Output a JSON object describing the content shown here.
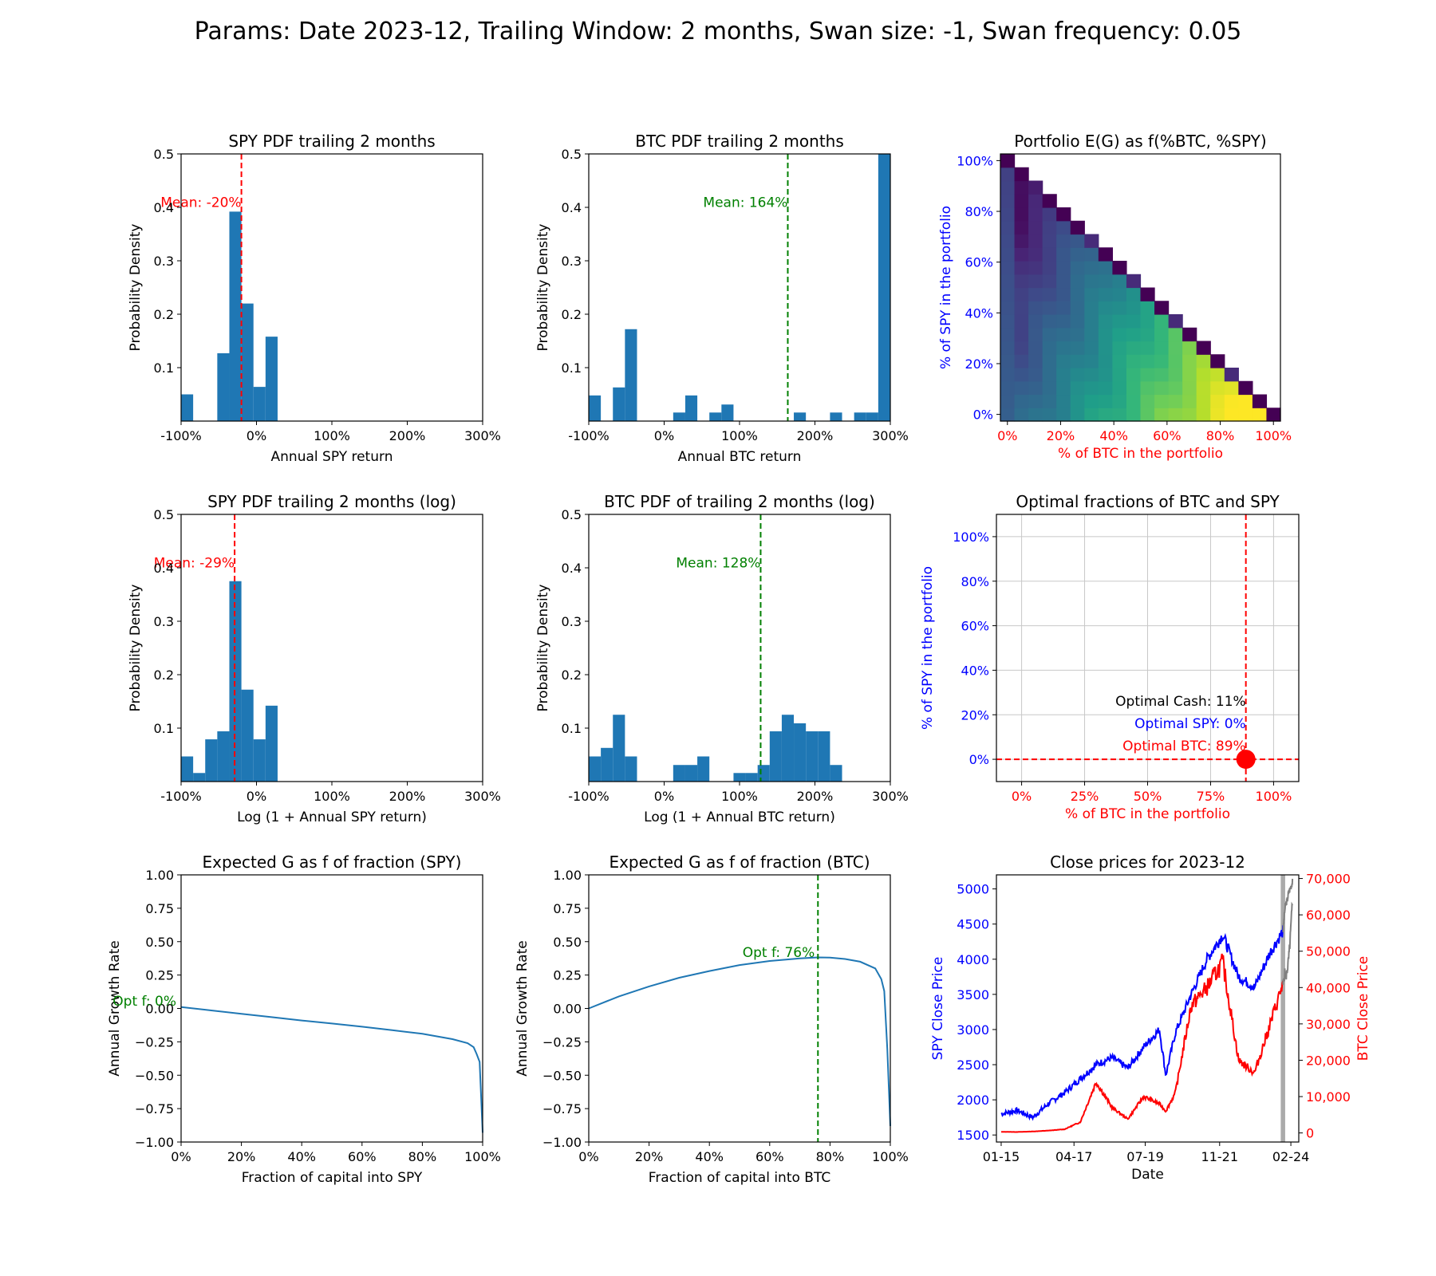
{
  "suptitle": "Params: Date 2023-12, Trailing Window:  2 months,  Swan size: -1, Swan frequency: 0.05",
  "colors": {
    "bar": "#1f77b4",
    "red": "#ff0000",
    "green": "#008000",
    "blue": "#0000ff",
    "gray": "#808080"
  },
  "chart_data": [
    {
      "id": "spy_pdf",
      "type": "bar",
      "title": "SPY PDF trailing 2 months",
      "xlabel": "Annual SPY return",
      "ylabel": "Probability Density",
      "xlim": [
        -1.0,
        3.0
      ],
      "ylim": [
        0,
        0.5
      ],
      "xticks": [
        -1,
        0,
        1,
        2,
        3
      ],
      "xtick_labels": [
        "-100%",
        "0%",
        "100%",
        "200%",
        "300%"
      ],
      "yticks": [
        0.1,
        0.2,
        0.3,
        0.4,
        0.5
      ],
      "ytick_labels": [
        "0.1",
        "0.2",
        "0.3",
        "0.4",
        "0.5"
      ],
      "bar_width": 0.16,
      "bars": [
        {
          "x0": -1.0,
          "v": 0.05
        },
        {
          "x0": -0.52,
          "v": 0.127
        },
        {
          "x0": -0.36,
          "v": 0.392
        },
        {
          "x0": -0.2,
          "v": 0.22
        },
        {
          "x0": -0.04,
          "v": 0.064
        },
        {
          "x0": 0.12,
          "v": 0.158
        }
      ],
      "mean_line": {
        "x": -0.2,
        "label": "Mean: -20%",
        "color": "red"
      }
    },
    {
      "id": "btc_pdf",
      "type": "bar",
      "title": "BTC PDF trailing 2 months",
      "xlabel": "Annual BTC return",
      "ylabel": "Probability Density",
      "xlim": [
        -1.0,
        3.0
      ],
      "ylim": [
        0,
        0.5
      ],
      "xticks": [
        -1,
        0,
        1,
        2,
        3
      ],
      "xtick_labels": [
        "-100%",
        "0%",
        "100%",
        "200%",
        "300%"
      ],
      "yticks": [
        0.1,
        0.2,
        0.3,
        0.4,
        0.5
      ],
      "ytick_labels": [
        "0.1",
        "0.2",
        "0.3",
        "0.4",
        "0.5"
      ],
      "bar_width": 0.16,
      "bars": [
        {
          "x0": -1.0,
          "v": 0.048
        },
        {
          "x0": -0.68,
          "v": 0.063
        },
        {
          "x0": -0.52,
          "v": 0.172
        },
        {
          "x0": 0.12,
          "v": 0.016
        },
        {
          "x0": 0.28,
          "v": 0.048
        },
        {
          "x0": 0.6,
          "v": 0.016
        },
        {
          "x0": 0.76,
          "v": 0.031
        },
        {
          "x0": 1.72,
          "v": 0.016
        },
        {
          "x0": 2.2,
          "v": 0.016
        },
        {
          "x0": 2.52,
          "v": 0.016
        },
        {
          "x0": 2.68,
          "v": 0.016
        },
        {
          "x0": 2.84,
          "v": 0.5
        }
      ],
      "mean_line": {
        "x": 1.64,
        "label": "Mean: 164%",
        "color": "green"
      }
    },
    {
      "id": "portfolio_eg",
      "type": "heatmap",
      "title": "Portfolio E(G) as f(%BTC, %SPY)",
      "xlabel": "% of BTC in the portfolio",
      "ylabel": "% of SPY in the portfolio",
      "ticks": [
        0,
        20,
        40,
        60,
        80,
        100
      ],
      "tick_labels": [
        "0%",
        "20%",
        "40%",
        "60%",
        "80%",
        "100%"
      ],
      "n": 20,
      "colormap": "viridis",
      "cell_value_rule": "relative E(G) per cell, 0 = darkest, 1 = brightest; diagonal (BTC+SPY = 100%) is darkest"
    },
    {
      "id": "spy_log_pdf",
      "type": "bar",
      "title": "SPY PDF trailing 2 months (log)",
      "xlabel": "Log (1 + Annual SPY return)",
      "ylabel": "Probability Density",
      "xlim": [
        -1.0,
        3.0
      ],
      "ylim": [
        0,
        0.5
      ],
      "xticks": [
        -1,
        0,
        1,
        2,
        3
      ],
      "xtick_labels": [
        "-100%",
        "0%",
        "100%",
        "200%",
        "300%"
      ],
      "yticks": [
        0.1,
        0.2,
        0.3,
        0.4,
        0.5
      ],
      "ytick_labels": [
        "0.1",
        "0.2",
        "0.3",
        "0.4",
        "0.5"
      ],
      "bar_width": 0.16,
      "bars": [
        {
          "x0": -1.0,
          "v": 0.047
        },
        {
          "x0": -0.84,
          "v": 0.016
        },
        {
          "x0": -0.68,
          "v": 0.079
        },
        {
          "x0": -0.52,
          "v": 0.094
        },
        {
          "x0": -0.36,
          "v": 0.375
        },
        {
          "x0": -0.2,
          "v": 0.172
        },
        {
          "x0": -0.04,
          "v": 0.079
        },
        {
          "x0": 0.12,
          "v": 0.142
        }
      ],
      "mean_line": {
        "x": -0.29,
        "label": "Mean: -29%",
        "color": "red"
      }
    },
    {
      "id": "btc_log_pdf",
      "type": "bar",
      "title": "BTC PDF of trailing 2 months (log)",
      "xlabel": "Log (1 + Annual BTC return)",
      "ylabel": "Probability Density",
      "xlim": [
        -1.0,
        3.0
      ],
      "ylim": [
        0,
        0.5
      ],
      "xticks": [
        -1,
        0,
        1,
        2,
        3
      ],
      "xtick_labels": [
        "-100%",
        "0%",
        "100%",
        "200%",
        "300%"
      ],
      "yticks": [
        0.1,
        0.2,
        0.3,
        0.4,
        0.5
      ],
      "ytick_labels": [
        "0.1",
        "0.2",
        "0.3",
        "0.4",
        "0.5"
      ],
      "bar_width": 0.16,
      "bars": [
        {
          "x0": -1.0,
          "v": 0.047
        },
        {
          "x0": -0.84,
          "v": 0.063
        },
        {
          "x0": -0.68,
          "v": 0.125
        },
        {
          "x0": -0.52,
          "v": 0.047
        },
        {
          "x0": 0.12,
          "v": 0.031
        },
        {
          "x0": 0.28,
          "v": 0.031
        },
        {
          "x0": 0.44,
          "v": 0.047
        },
        {
          "x0": 0.92,
          "v": 0.016
        },
        {
          "x0": 1.08,
          "v": 0.016
        },
        {
          "x0": 1.24,
          "v": 0.031
        },
        {
          "x0": 1.4,
          "v": 0.094
        },
        {
          "x0": 1.56,
          "v": 0.125
        },
        {
          "x0": 1.72,
          "v": 0.109
        },
        {
          "x0": 1.88,
          "v": 0.094
        },
        {
          "x0": 2.04,
          "v": 0.094
        },
        {
          "x0": 2.2,
          "v": 0.031
        }
      ],
      "mean_line": {
        "x": 1.28,
        "label": "Mean: 128%",
        "color": "green"
      }
    },
    {
      "id": "optimal_fractions",
      "type": "scatter",
      "title": "Optimal fractions of BTC and SPY",
      "xlabel": "% of BTC in the portfolio",
      "ylabel": "% of SPY in the portfolio",
      "xlim": [
        -10,
        110
      ],
      "ylim": [
        -10,
        110
      ],
      "xticks": [
        0,
        25,
        50,
        75,
        100
      ],
      "xtick_labels": [
        "0%",
        "25%",
        "50%",
        "75%",
        "100%"
      ],
      "yticks": [
        0,
        20,
        40,
        60,
        80,
        100
      ],
      "ytick_labels": [
        "0%",
        "20%",
        "40%",
        "60%",
        "80%",
        "100%"
      ],
      "grid": true,
      "point": {
        "x": 89,
        "y": 0
      },
      "annotations": [
        {
          "text": "Optimal Cash: 11%",
          "color": "black"
        },
        {
          "text": "Optimal SPY: 0%",
          "color": "blue"
        },
        {
          "text": "Optimal BTC: 89%",
          "color": "red"
        }
      ]
    },
    {
      "id": "eg_spy",
      "type": "line",
      "title": "Expected G as f of fraction (SPY)",
      "xlabel": "Fraction of capital into SPY",
      "ylabel": "Annual Growth Rate",
      "xlim": [
        0,
        1
      ],
      "ylim": [
        -1,
        1
      ],
      "xticks": [
        0,
        0.2,
        0.4,
        0.6,
        0.8,
        1.0
      ],
      "xtick_labels": [
        "0%",
        "20%",
        "40%",
        "60%",
        "80%",
        "100%"
      ],
      "yticks": [
        -1,
        -0.75,
        -0.5,
        -0.25,
        0,
        0.25,
        0.5,
        0.75,
        1
      ],
      "ytick_labels": [
        "−1.00",
        "−0.75",
        "−0.50",
        "−0.25",
        "0.00",
        "0.25",
        "0.50",
        "0.75",
        "1.00"
      ],
      "x": [
        0,
        0.1,
        0.2,
        0.3,
        0.4,
        0.5,
        0.6,
        0.7,
        0.8,
        0.9,
        0.95,
        0.97,
        0.98,
        0.99,
        1.0
      ],
      "y": [
        0.01,
        -0.015,
        -0.04,
        -0.065,
        -0.09,
        -0.113,
        -0.137,
        -0.163,
        -0.19,
        -0.23,
        -0.26,
        -0.29,
        -0.34,
        -0.4,
        -0.93
      ],
      "opt": {
        "label": "Opt f: 0%",
        "x": 0,
        "y": 0.01
      }
    },
    {
      "id": "eg_btc",
      "type": "line",
      "title": "Expected G as f of fraction (BTC)",
      "xlabel": "Fraction of capital into BTC",
      "ylabel": "Annual Growth Rate",
      "xlim": [
        0,
        1
      ],
      "ylim": [
        -1,
        1
      ],
      "xticks": [
        0,
        0.2,
        0.4,
        0.6,
        0.8,
        1.0
      ],
      "xtick_labels": [
        "0%",
        "20%",
        "40%",
        "60%",
        "80%",
        "100%"
      ],
      "yticks": [
        -1,
        -0.75,
        -0.5,
        -0.25,
        0,
        0.25,
        0.5,
        0.75,
        1
      ],
      "ytick_labels": [
        "−1.00",
        "−0.75",
        "−0.50",
        "−0.25",
        "0.00",
        "0.25",
        "0.50",
        "0.75",
        "1.00"
      ],
      "x": [
        0,
        0.1,
        0.2,
        0.3,
        0.4,
        0.5,
        0.6,
        0.7,
        0.76,
        0.8,
        0.85,
        0.9,
        0.95,
        0.97,
        0.98,
        0.99,
        1.0
      ],
      "y": [
        0.0,
        0.09,
        0.165,
        0.23,
        0.28,
        0.325,
        0.355,
        0.375,
        0.382,
        0.38,
        0.37,
        0.35,
        0.3,
        0.22,
        0.13,
        -0.3,
        -0.88
      ],
      "opt_line": {
        "x": 0.76,
        "label": "Opt f: 76%",
        "color": "green"
      }
    },
    {
      "id": "close_prices",
      "type": "line",
      "title": "Close prices for 2023-12",
      "xlabel": "Date",
      "ylabel_left": "SPY Close Price",
      "ylabel_right": "BTC Close Price",
      "xtick_labels": [
        "01-15",
        "04-17",
        "07-19",
        "11-21",
        "02-24"
      ],
      "yticks_left": [
        1500,
        2000,
        2500,
        3000,
        3500,
        4000,
        4500,
        5000
      ],
      "ytick_labels_left": [
        "1500",
        "2000",
        "2500",
        "3000",
        "3500",
        "4000",
        "4500",
        "5000"
      ],
      "ylim_left": [
        1400,
        5200
      ],
      "yticks_right": [
        0,
        10000,
        20000,
        30000,
        40000,
        50000,
        60000,
        70000
      ],
      "ytick_labels_right": [
        "0",
        "10,000",
        "20,000",
        "30,000",
        "40,000",
        "50,000",
        "60,000",
        "70,000"
      ],
      "ylim_right": [
        -2500,
        71000
      ],
      "xlim": [
        2014.85,
        2024.4
      ],
      "x_years": [
        2015.0,
        2015.5,
        2016.0,
        2016.5,
        2017.0,
        2017.5,
        2018.0,
        2018.5,
        2019.0,
        2019.5,
        2020.0,
        2020.2,
        2020.5,
        2021.0,
        2021.5,
        2022.0,
        2022.5,
        2023.0,
        2023.5,
        2023.9
      ],
      "spy": [
        1800,
        1850,
        1750,
        1950,
        2100,
        2300,
        2500,
        2600,
        2450,
        2750,
        3000,
        2350,
        2950,
        3500,
        4000,
        4350,
        3750,
        3600,
        4100,
        4400
      ],
      "btc": [
        300,
        260,
        400,
        650,
        1000,
        3000,
        14000,
        7000,
        3800,
        10000,
        8000,
        6000,
        11000,
        35000,
        40000,
        47000,
        20000,
        16500,
        30000,
        41000
      ],
      "trailing_x": [
        2023.9,
        2023.93,
        2023.96,
        2024.0,
        2024.04,
        2024.08,
        2024.12,
        2024.16,
        2024.2
      ],
      "trailing_spy": [
        4400,
        4550,
        4700,
        4800,
        4850,
        4950,
        5000,
        5050,
        5100
      ],
      "trailing_btc": [
        41000,
        42000,
        44000,
        43000,
        45000,
        48000,
        52000,
        58000,
        64000
      ],
      "highlight_span": [
        2023.83,
        2023.97
      ]
    }
  ]
}
